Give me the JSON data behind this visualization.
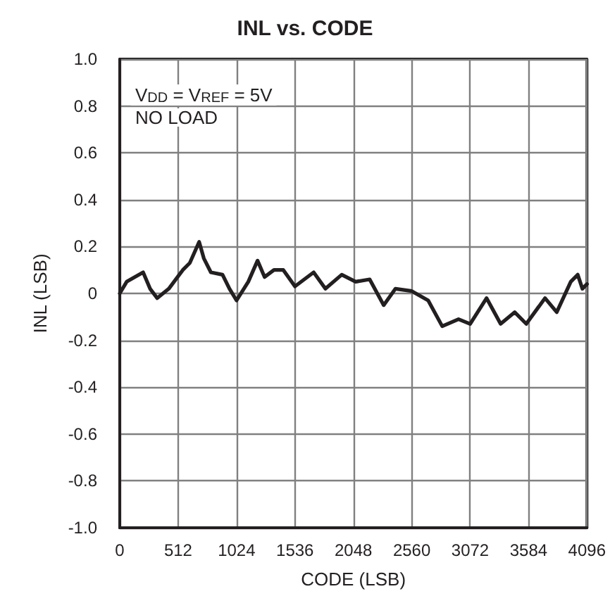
{
  "chart_data": {
    "type": "line",
    "title": "INL vs. CODE",
    "xlabel": "CODE (LSB)",
    "ylabel": "INL (LSB)",
    "annotations": [
      "V$_{DD}$ = V$_{REF}$ = 5V",
      "NO LOAD"
    ],
    "x": [
      0,
      61,
      205,
      266,
      328,
      430,
      553,
      614,
      696,
      737,
      799,
      901,
      962,
      1024,
      1127,
      1208,
      1270,
      1352,
      1434,
      1536,
      1700,
      1803,
      1946,
      2068,
      2191,
      2314,
      2417,
      2560,
      2704,
      2827,
      2970,
      3072,
      3216,
      3339,
      3462,
      3564,
      3728,
      3831,
      3954,
      4015,
      4056,
      4096
    ],
    "series": [
      {
        "color": "#231f20",
        "values": [
          0.0,
          0.05,
          0.09,
          0.02,
          -0.02,
          0.02,
          0.1,
          0.13,
          0.22,
          0.15,
          0.09,
          0.08,
          0.02,
          -0.03,
          0.05,
          0.14,
          0.07,
          0.1,
          0.1,
          0.03,
          0.09,
          0.02,
          0.08,
          0.05,
          0.06,
          -0.05,
          0.02,
          0.01,
          -0.03,
          -0.14,
          -0.11,
          -0.13,
          -0.02,
          -0.13,
          -0.08,
          -0.13,
          -0.02,
          -0.08,
          0.05,
          0.08,
          0.02,
          0.04
        ]
      }
    ],
    "xlim": [
      0,
      4096
    ],
    "xticks": [
      0,
      512,
      1024,
      1536,
      2048,
      2560,
      3072,
      3584,
      4096
    ],
    "ylim": [
      -1,
      1
    ],
    "yticks": [
      {
        "value": -1,
        "label": "-1.0"
      },
      -0.8,
      -0.6,
      -0.4,
      -0.2,
      0,
      0.2,
      0.4,
      0.6,
      0.8,
      {
        "value": 1,
        "label": "1.0"
      }
    ],
    "grid": true,
    "marker": "none",
    "line_style": "solid"
  }
}
